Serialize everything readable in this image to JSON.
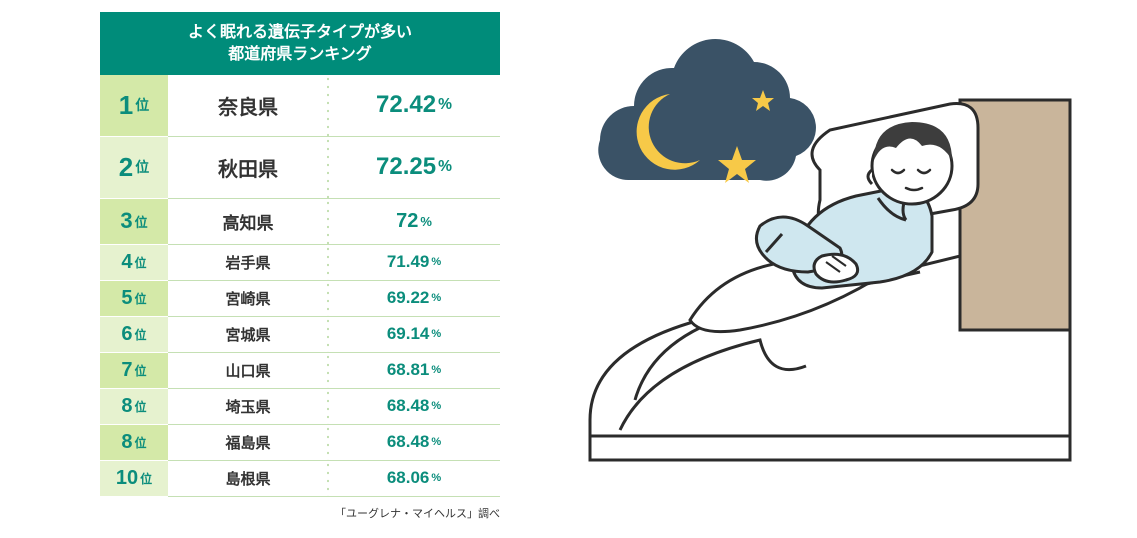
{
  "table": {
    "title_line1": "よく眠れる遺伝子タイプが多い",
    "title_line2": "都道府県ランキング",
    "header_bg": "#008c7a",
    "header_text_color": "#ffffff",
    "row_divider_color": "#c5e0b4",
    "rank_suffix": "位",
    "pct_unit": "%",
    "rows": [
      {
        "rank": "1",
        "prefecture": "奈良県",
        "pct": "72.42",
        "rank_bg": "#d4e9a8",
        "rank_color": "#0b8d7c",
        "pct_color": "#0b8d7c",
        "size": "lg"
      },
      {
        "rank": "2",
        "prefecture": "秋田県",
        "pct": "72.25",
        "rank_bg": "#e6f2cf",
        "rank_color": "#0b8d7c",
        "pct_color": "#0b8d7c",
        "size": "lg"
      },
      {
        "rank": "3",
        "prefecture": "高知県",
        "pct": "72",
        "rank_bg": "#d4e9a8",
        "rank_color": "#0b8d7c",
        "pct_color": "#0b8d7c",
        "size": "md"
      },
      {
        "rank": "4",
        "prefecture": "岩手県",
        "pct": "71.49",
        "rank_bg": "#e6f2cf",
        "rank_color": "#0b8d7c",
        "pct_color": "#0b8d7c",
        "size": "sm"
      },
      {
        "rank": "5",
        "prefecture": "宮崎県",
        "pct": "69.22",
        "rank_bg": "#d4e9a8",
        "rank_color": "#0b8d7c",
        "pct_color": "#0b8d7c",
        "size": "sm"
      },
      {
        "rank": "6",
        "prefecture": "宮城県",
        "pct": "69.14",
        "rank_bg": "#e6f2cf",
        "rank_color": "#0b8d7c",
        "pct_color": "#0b8d7c",
        "size": "sm"
      },
      {
        "rank": "7",
        "prefecture": "山口県",
        "pct": "68.81",
        "rank_bg": "#d4e9a8",
        "rank_color": "#0b8d7c",
        "pct_color": "#0b8d7c",
        "size": "sm"
      },
      {
        "rank": "8",
        "prefecture": "埼玉県",
        "pct": "68.48",
        "rank_bg": "#e6f2cf",
        "rank_color": "#0b8d7c",
        "pct_color": "#0b8d7c",
        "size": "sm"
      },
      {
        "rank": "8",
        "prefecture": "福島県",
        "pct": "68.48",
        "rank_bg": "#d4e9a8",
        "rank_color": "#0b8d7c",
        "pct_color": "#0b8d7c",
        "size": "sm"
      },
      {
        "rank": "10",
        "prefecture": "島根県",
        "pct": "68.06",
        "rank_bg": "#e6f2cf",
        "rank_color": "#0b8d7c",
        "pct_color": "#0b8d7c",
        "size": "sm"
      }
    ],
    "credit": "「ユーグレナ・マイヘルス」調べ"
  },
  "illustration": {
    "type": "infographic",
    "description": "sleeping-person-with-night-cloud",
    "night_cloud_color": "#3a5266",
    "moon_color": "#f7c948",
    "star_color": "#f7c948",
    "line_color": "#2b2b2b",
    "pajama_color": "#cfe7ef",
    "hair_color": "#3d3d3d",
    "skin_color": "#ffffff",
    "headboard_color": "#c9b59b",
    "bed_fill": "#ffffff"
  }
}
